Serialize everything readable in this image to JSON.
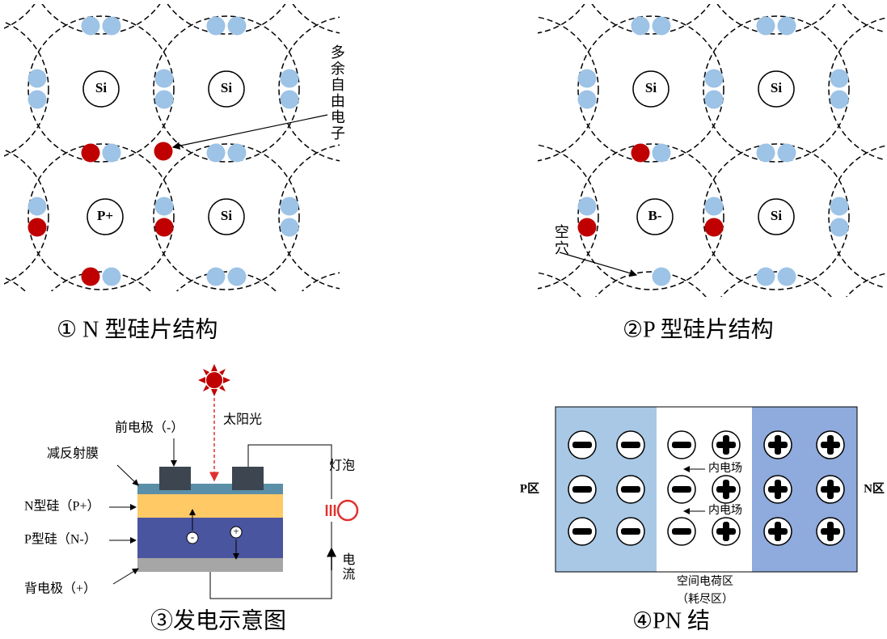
{
  "panels": [
    {
      "atoms": [
        "Si",
        "Si",
        "P+",
        "Si"
      ],
      "annotation": "多余自由电子",
      "caption": "① N 型硅片结构"
    },
    {
      "atoms": [
        "Si",
        "Si",
        "B-",
        "Si"
      ],
      "annotation": "空穴",
      "caption": "②P 型硅片结构"
    }
  ],
  "generation": {
    "sun_label": "太阳光",
    "front_electrode": "前电极（-）",
    "layers": [
      "减反射膜",
      "N型硅（P+）",
      "P型硅（N-）",
      "背电极（+）"
    ],
    "bulb": "灯泡",
    "current": "电流",
    "charges": [
      "-",
      "+"
    ],
    "caption": "③发电示意图"
  },
  "pn_junction": {
    "p_label": "P区",
    "n_label": "N区",
    "field_labels": [
      "内电场",
      "内电场"
    ],
    "region_label": "空间电荷区",
    "region_sublabel": "（耗尽区）",
    "caption": "④PN 结"
  }
}
